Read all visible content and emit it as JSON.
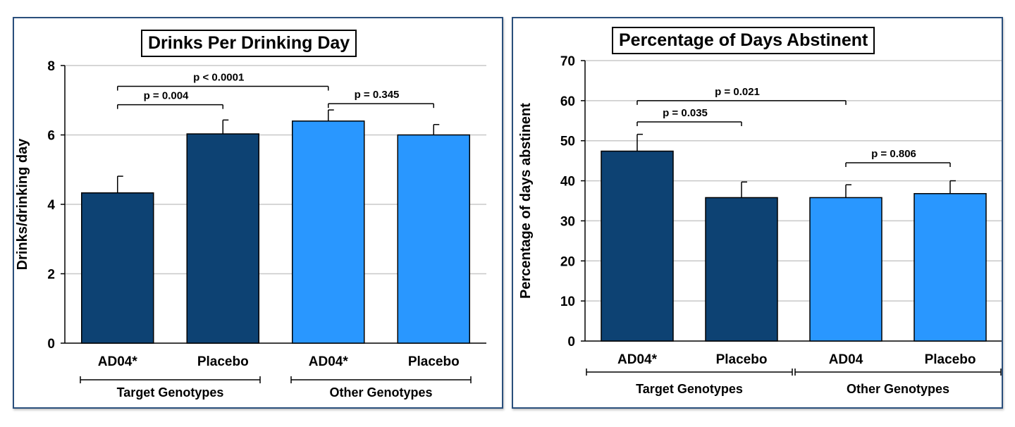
{
  "chart_data": [
    {
      "type": "bar",
      "title": "Drinks Per Drinking Day",
      "xlabel": "",
      "ylabel": "Drinks/drinking day",
      "ylim": [
        0,
        8
      ],
      "yticks": [
        0,
        2,
        4,
        6,
        8
      ],
      "grid": true,
      "categories": [
        "AD04*",
        "Placebo",
        "AD04*",
        "Placebo"
      ],
      "values": [
        4.33,
        6.03,
        6.4,
        6.0
      ],
      "errors": [
        0.48,
        0.4,
        0.32,
        0.3
      ],
      "bar_colors": [
        "#0d4273",
        "#0d4273",
        "#2997ff",
        "#2997ff"
      ],
      "groups": [
        {
          "label": "Target Genotypes",
          "bars": [
            0,
            1
          ]
        },
        {
          "label": "Other Genotypes",
          "bars": [
            2,
            3
          ]
        }
      ],
      "brackets": [
        {
          "label": "p < 0.0001",
          "from": 0,
          "to": 2,
          "y": 7.4
        },
        {
          "label": "p = 0.004",
          "from": 0,
          "to": 1,
          "y": 6.87
        },
        {
          "label": "p = 0.345",
          "from": 2,
          "to": 3,
          "y": 6.9
        }
      ]
    },
    {
      "type": "bar",
      "title": "Percentage of Days Abstinent",
      "xlabel": "",
      "ylabel": "Percentage of days abstinent",
      "ylim": [
        0,
        70
      ],
      "yticks": [
        0,
        10,
        20,
        30,
        40,
        50,
        60,
        70
      ],
      "grid": true,
      "categories": [
        "AD04*",
        "Placebo",
        "AD04",
        "Placebo"
      ],
      "values": [
        47.4,
        35.8,
        35.8,
        36.8
      ],
      "errors": [
        4.2,
        3.9,
        3.2,
        3.2
      ],
      "bar_colors": [
        "#0d4273",
        "#0d4273",
        "#2997ff",
        "#2997ff"
      ],
      "groups": [
        {
          "label": "Target Genotypes",
          "bars": [
            0,
            1
          ]
        },
        {
          "label": "Other Genotypes",
          "bars": [
            2,
            3
          ]
        }
      ],
      "brackets": [
        {
          "label": "p = 0.021",
          "from": 0,
          "to": 2,
          "y": 60
        },
        {
          "label": "p = 0.035",
          "from": 0,
          "to": 1,
          "y": 54.7
        },
        {
          "label": "p = 0.806",
          "from": 2,
          "to": 3,
          "y": 44.5
        }
      ]
    }
  ]
}
